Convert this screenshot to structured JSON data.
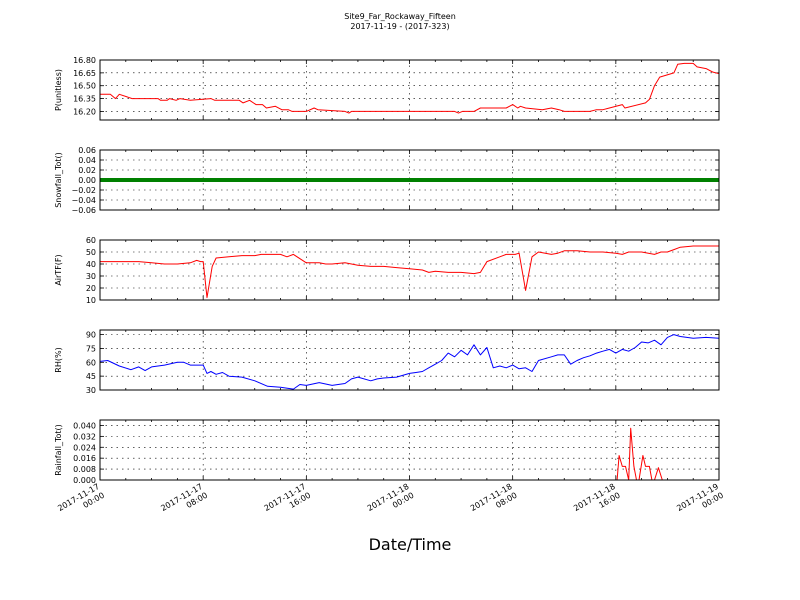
{
  "figure": {
    "title_line1": "Site9_Far_Rockaway_Fifteen",
    "title_line2": "2017-11-19 - (2017-323)",
    "xlabel": "Date/Time",
    "x_tick_labels": [
      [
        "2017-11-17",
        "00:00"
      ],
      [
        "2017-11-17",
        "08:00"
      ],
      [
        "2017-11-17",
        "16:00"
      ],
      [
        "2017-11-18",
        "00:00"
      ],
      [
        "2017-11-18",
        "08:00"
      ],
      [
        "2017-11-18",
        "16:00"
      ],
      [
        "2017-11-19",
        "00:00"
      ]
    ]
  },
  "chart_data": [
    {
      "type": "line",
      "ylabel": "P(unitless)",
      "ylim": [
        16.1,
        16.8
      ],
      "yticks": [
        16.8,
        16.65,
        16.5,
        16.35,
        16.2
      ],
      "ytick_labels": [
        "16.80",
        "16.65",
        "16.50",
        "16.35",
        "16.20"
      ],
      "xlim_hours": [
        0,
        48
      ],
      "grid": true,
      "series": [
        {
          "color": "#ff0000",
          "x": [
            0,
            0.8,
            1.2,
            1.5,
            2.5,
            3,
            4.5,
            4.7,
            5.2,
            5.4,
            5.9,
            6.2,
            7,
            8.6,
            8.9,
            9.5,
            10.8,
            11.1,
            11.6,
            12.1,
            12.6,
            12.9,
            13.6,
            14.1,
            14.6,
            14.9,
            16,
            16.6,
            16.9,
            19,
            19.3,
            19.5,
            20,
            24,
            27.5,
            27.8,
            28.1,
            29,
            29.5,
            31,
            31.5,
            32,
            32.4,
            32.6,
            33,
            34.3,
            35,
            35.6,
            36,
            37,
            38,
            38.5,
            39,
            39.5,
            40.5,
            40.7,
            42.3,
            42.6,
            43,
            43.4,
            44.5,
            44.8,
            45.3,
            46,
            46.3,
            47,
            47.5,
            48
          ],
          "y": [
            16.4,
            16.4,
            16.35,
            16.4,
            16.35,
            16.35,
            16.35,
            16.33,
            16.33,
            16.35,
            16.33,
            16.35,
            16.33,
            16.35,
            16.33,
            16.33,
            16.33,
            16.3,
            16.33,
            16.28,
            16.28,
            16.24,
            16.26,
            16.22,
            16.22,
            16.2,
            16.2,
            16.24,
            16.22,
            16.2,
            16.18,
            16.2,
            16.2,
            16.2,
            16.2,
            16.18,
            16.2,
            16.2,
            16.24,
            16.24,
            16.24,
            16.28,
            16.24,
            16.26,
            16.24,
            16.22,
            16.24,
            16.22,
            16.2,
            16.2,
            16.2,
            16.22,
            16.22,
            16.24,
            16.28,
            16.24,
            16.3,
            16.34,
            16.5,
            16.6,
            16.65,
            16.75,
            16.76,
            16.76,
            16.72,
            16.7,
            16.66,
            16.64
          ]
        }
      ]
    },
    {
      "type": "line",
      "ylabel": "Snowfall_Tot()",
      "ylim": [
        -0.06,
        0.06
      ],
      "yticks": [
        0.06,
        0.04,
        0.02,
        0.0,
        -0.02,
        -0.04,
        -0.06
      ],
      "ytick_labels": [
        "0.06",
        "0.04",
        "0.02",
        "0.00",
        "−0.02",
        "−0.04",
        "−0.06"
      ],
      "xlim_hours": [
        0,
        48
      ],
      "grid": true,
      "series": [
        {
          "color": "#008000",
          "x": [
            0,
            48
          ],
          "y": [
            0,
            0
          ]
        }
      ]
    },
    {
      "type": "line",
      "ylabel": "AirTF(F)",
      "ylim": [
        10,
        60
      ],
      "yticks": [
        60,
        50,
        40,
        30,
        20,
        10
      ],
      "ytick_labels": [
        "60",
        "50",
        "40",
        "30",
        "20",
        "10"
      ],
      "xlim_hours": [
        0,
        48
      ],
      "grid": true,
      "series": [
        {
          "color": "#ff0000",
          "x": [
            0,
            2,
            3,
            4,
            5,
            6,
            7,
            7.5,
            7.8,
            8,
            8.3,
            8.7,
            9,
            10,
            11,
            12,
            12.5,
            13,
            13.6,
            14,
            14.5,
            15,
            16,
            17,
            17.5,
            18,
            19,
            20,
            21,
            22,
            23,
            24,
            25,
            25.5,
            26,
            27,
            28,
            29,
            29.5,
            30,
            31,
            31.5,
            32,
            32.2,
            32.5,
            33,
            33.5,
            34,
            35,
            35.5,
            36,
            37,
            38,
            39,
            40,
            40.5,
            41,
            41.5,
            42,
            43,
            43.5,
            44,
            44.5,
            45,
            46,
            47,
            48
          ],
          "y": [
            42,
            42,
            42,
            41,
            40,
            40,
            41,
            43,
            42,
            42,
            12,
            38,
            45,
            46,
            47,
            47,
            48,
            48,
            48,
            48,
            46,
            48,
            41,
            41,
            40,
            40,
            41,
            39,
            38,
            38,
            37,
            36,
            35,
            33,
            34,
            33,
            33,
            32,
            33,
            42,
            46,
            48,
            48,
            48,
            49,
            18,
            46,
            50,
            48,
            49,
            51,
            51,
            50,
            50,
            49,
            48,
            50,
            50,
            50,
            48,
            50,
            50,
            52,
            54,
            55,
            55,
            55
          ]
        }
      ]
    },
    {
      "type": "line",
      "ylabel": "RH(%)",
      "ylim": [
        30,
        95
      ],
      "yticks": [
        90,
        75,
        60,
        45,
        30
      ],
      "ytick_labels": [
        "90",
        "75",
        "60",
        "45",
        "30"
      ],
      "xlim_hours": [
        0,
        48
      ],
      "grid": true,
      "series": [
        {
          "color": "#0000ff",
          "x": [
            0,
            0.6,
            1.5,
            2.4,
            3,
            3.5,
            4,
            5,
            6,
            6.5,
            7,
            7.4,
            8,
            8.3,
            8.6,
            9,
            9.5,
            10,
            11,
            12,
            13,
            14,
            15,
            15.5,
            16,
            17,
            18,
            19,
            19.5,
            20,
            21,
            21.5,
            22,
            23,
            24,
            24.5,
            25,
            25.5,
            26,
            26.5,
            27,
            27.5,
            28,
            28.5,
            29,
            29.5,
            30,
            30.5,
            31,
            31.5,
            32,
            32.5,
            33,
            33.5,
            34,
            35,
            35.5,
            36,
            36.5,
            37,
            37.5,
            38,
            38.5,
            39,
            39.5,
            40,
            40.5,
            41,
            41.5,
            42,
            42.5,
            43,
            43.5,
            44,
            44.5,
            45,
            46,
            47,
            48
          ],
          "y": [
            61,
            62,
            56,
            52,
            55,
            51,
            55,
            57,
            60,
            60,
            57,
            57,
            57,
            48,
            50,
            47,
            49,
            45,
            44,
            40,
            34,
            33,
            31,
            36,
            35,
            38,
            35,
            37,
            42,
            44,
            40,
            42,
            43,
            44,
            48,
            49,
            50,
            54,
            58,
            62,
            70,
            66,
            73,
            68,
            79,
            68,
            76,
            54,
            56,
            54,
            57,
            53,
            54,
            50,
            62,
            66,
            68,
            68,
            58,
            62,
            65,
            67,
            70,
            72,
            74,
            70,
            74,
            72,
            76,
            82,
            81,
            84,
            79,
            87,
            90,
            88,
            86,
            87,
            86
          ]
        }
      ]
    },
    {
      "type": "line",
      "ylabel": "Rainfall_Tot()",
      "ylim": [
        0,
        0.044
      ],
      "yticks": [
        0.04,
        0.032,
        0.024,
        0.016,
        0.008,
        0.0
      ],
      "ytick_labels": [
        "0.040",
        "0.032",
        "0.024",
        "0.016",
        "0.008",
        "0.000"
      ],
      "xlim_hours": [
        0,
        48
      ],
      "grid": true,
      "series": [
        {
          "color": "#ff0000",
          "x": [
            0,
            40,
            40.1,
            40.25,
            40.5,
            40.75,
            41,
            41.15,
            41.4,
            41.6,
            41.8,
            42.1,
            42.3,
            42.6,
            42.8,
            43,
            43.3,
            43.6,
            43.8,
            48
          ],
          "y": [
            0,
            0,
            0,
            0.018,
            0.01,
            0.01,
            0,
            0.038,
            0.01,
            0,
            0,
            0.018,
            0.01,
            0.01,
            0,
            0,
            0.009,
            0,
            0,
            0
          ]
        }
      ]
    }
  ]
}
